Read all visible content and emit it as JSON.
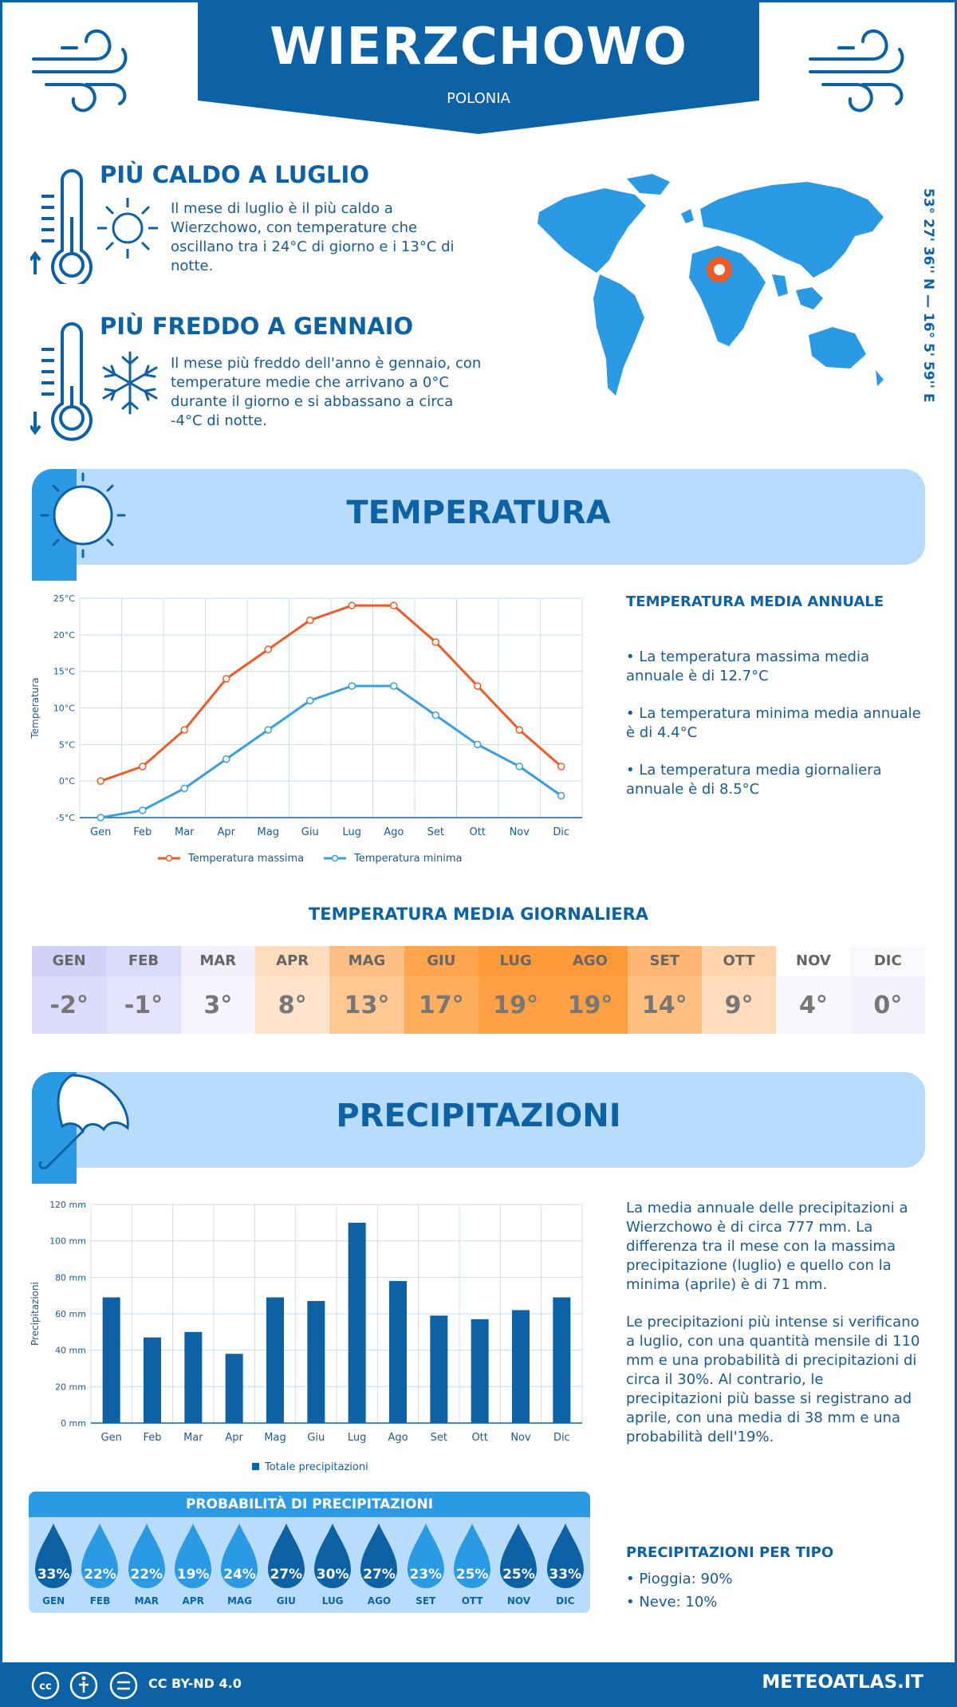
{
  "header": {
    "title": "WIERZCHOWO",
    "subtitle": "POLONIA"
  },
  "warmest": {
    "title": "PIÙ CALDO A LUGLIO",
    "text": "Il mese di luglio è il più caldo a Wierzchowo, con temperature che oscillano tra i 24°C di giorno e i 13°C di notte."
  },
  "coldest": {
    "title": "PIÙ FREDDO A GENNAIO",
    "text": "Il mese più freddo dell'anno è gennaio, con temperature medie che arrivano a 0°C durante il giorno e si abbassano a circa -4°C di notte."
  },
  "coordinates": "53° 27' 36'' N — 16° 5' 59'' E",
  "temperature_section": {
    "title": "TEMPERATURA",
    "side_title": "TEMPERATURA MEDIA ANNUALE",
    "bullets": [
      "• La temperatura massima media annuale è di 12.7°C",
      "• La temperatura minima media annuale è di 4.4°C",
      "• La temperatura media giornaliera annuale è di 8.5°C"
    ]
  },
  "daily": {
    "title": "TEMPERATURA MEDIA GIORNALIERA",
    "cells": [
      {
        "m": "GEN",
        "v": "-2°",
        "bg": "#dcdcfb",
        "hbg": "#d2d2f9"
      },
      {
        "m": "FEB",
        "v": "-1°",
        "bg": "#e3e3fb",
        "hbg": "#dadafa"
      },
      {
        "m": "MAR",
        "v": "3°",
        "bg": "#f4f4fd",
        "hbg": "#f0f0fb"
      },
      {
        "m": "APR",
        "v": "8°",
        "bg": "#ffe4cc",
        "hbg": "#ffdcbe"
      },
      {
        "m": "MAG",
        "v": "13°",
        "bg": "#ffc893",
        "hbg": "#ffbf84"
      },
      {
        "m": "GIU",
        "v": "17°",
        "bg": "#ffae5c",
        "hbg": "#ffa54d"
      },
      {
        "m": "LUG",
        "v": "19°",
        "bg": "#ff9f43",
        "hbg": "#ff9a3a"
      },
      {
        "m": "AGO",
        "v": "19°",
        "bg": "#ff9f43",
        "hbg": "#ff9a3a"
      },
      {
        "m": "SET",
        "v": "14°",
        "bg": "#ffbf80",
        "hbg": "#ffb673"
      },
      {
        "m": "OTT",
        "v": "9°",
        "bg": "#ffdcbb",
        "hbg": "#ffd4ad"
      },
      {
        "m": "NOV",
        "v": "4°",
        "bg": "#f7f7fd",
        "hbg": "#ffffff"
      },
      {
        "m": "DIC",
        "v": "0°",
        "bg": "#f2f2fc",
        "hbg": "#f8f8fd"
      }
    ]
  },
  "precip_section": {
    "title": "PRECIPITAZIONI",
    "para1": "La media annuale delle precipitazioni a Wierzchowo è di circa 777 mm. La differenza tra il mese con la massima precipitazione (luglio) e quello con la minima (aprile) è di 71 mm.",
    "para2": "Le precipitazioni più intense si verificano a luglio, con una quantità mensile di 110 mm e una probabilità di precipitazioni di circa il 30%. Al contrario, le precipitazioni più basse si registrano ad aprile, con una media di 38 mm e una probabilità dell'19%.",
    "type_title": "PRECIPITAZIONI PER TIPO",
    "types": [
      "• Pioggia: 90%",
      "• Neve: 10%"
    ]
  },
  "probability": {
    "title": "PROBABILITÀ DI PRECIPITAZIONI",
    "items": [
      {
        "m": "GEN",
        "p": "33%",
        "c": "#0d62a6"
      },
      {
        "m": "FEB",
        "p": "22%",
        "c": "#2b9ae4"
      },
      {
        "m": "MAR",
        "p": "22%",
        "c": "#2b9ae4"
      },
      {
        "m": "APR",
        "p": "19%",
        "c": "#2b9ae4"
      },
      {
        "m": "MAG",
        "p": "24%",
        "c": "#2b9ae4"
      },
      {
        "m": "GIU",
        "p": "27%",
        "c": "#0d62a6"
      },
      {
        "m": "LUG",
        "p": "30%",
        "c": "#0d62a6"
      },
      {
        "m": "AGO",
        "p": "27%",
        "c": "#0d62a6"
      },
      {
        "m": "SET",
        "p": "23%",
        "c": "#2b9ae4"
      },
      {
        "m": "OTT",
        "p": "25%",
        "c": "#2b9ae4"
      },
      {
        "m": "NOV",
        "p": "25%",
        "c": "#0d62a6"
      },
      {
        "m": "DIC",
        "p": "33%",
        "c": "#0d62a6"
      }
    ]
  },
  "footer": {
    "license": "CC BY-ND 4.0",
    "brand": "METEOATLAS.IT"
  },
  "colors": {
    "primary": "#0d62a6",
    "accent": "#2b9ae4",
    "band": "#b7dcfd",
    "max_line": "#f05a28",
    "min_line": "#3aa0dc"
  },
  "chart_data": [
    {
      "type": "line",
      "categories": [
        "Gen",
        "Feb",
        "Mar",
        "Apr",
        "Mag",
        "Giu",
        "Lug",
        "Ago",
        "Set",
        "Ott",
        "Nov",
        "Dic"
      ],
      "series": [
        {
          "name": "Temperatura massima",
          "values": [
            0,
            2,
            7,
            14,
            18,
            22,
            24,
            24,
            19,
            13,
            7,
            2
          ]
        },
        {
          "name": "Temperatura minima",
          "values": [
            -5,
            -4,
            -1,
            3,
            7,
            11,
            13,
            13,
            9,
            5,
            2,
            -2
          ]
        }
      ],
      "ylabel": "Temperatura",
      "ylim": [
        -5,
        25
      ],
      "yticks": [
        "-5°C",
        "0°C",
        "5°C",
        "10°C",
        "15°C",
        "20°C",
        "25°C"
      ],
      "grid": true,
      "legend": "bottom"
    },
    {
      "type": "bar",
      "categories": [
        "Gen",
        "Feb",
        "Mar",
        "Apr",
        "Mag",
        "Giu",
        "Lug",
        "Ago",
        "Set",
        "Ott",
        "Nov",
        "Dic"
      ],
      "series": [
        {
          "name": "Totale precipitazioni",
          "values": [
            69,
            47,
            50,
            38,
            69,
            67,
            110,
            78,
            59,
            57,
            62,
            69
          ]
        }
      ],
      "ylabel": "Precipitazioni",
      "ylim": [
        0,
        120
      ],
      "yticks": [
        "0 mm",
        "20 mm",
        "40 mm",
        "60 mm",
        "80 mm",
        "100 mm",
        "120 mm"
      ],
      "grid": true,
      "legend": "bottom"
    }
  ]
}
